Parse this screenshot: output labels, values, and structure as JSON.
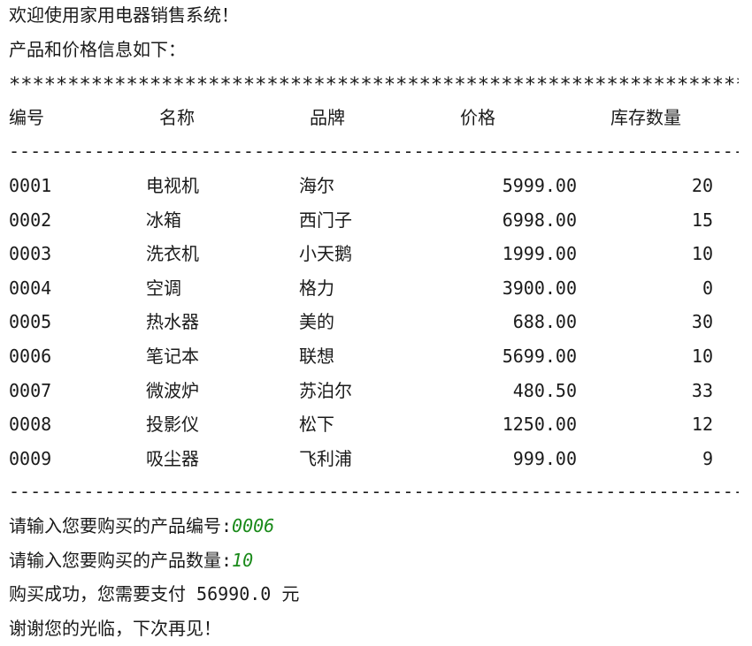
{
  "welcome": "欢迎使用家用电器销售系统！",
  "intro": "产品和价格信息如下：",
  "star_char": "*",
  "dash_char": "-",
  "headers": [
    "编号",
    "名称",
    "品牌",
    "价格",
    "库存数量"
  ],
  "rows": [
    [
      "0001",
      "电视机",
      "海尔",
      "5999.00",
      "20"
    ],
    [
      "0002",
      "冰箱",
      "西门子",
      "6998.00",
      "15"
    ],
    [
      "0003",
      "洗衣机",
      "小天鹅",
      "1999.00",
      "10"
    ],
    [
      "0004",
      "空调",
      "格力",
      "3900.00",
      "0"
    ],
    [
      "0005",
      "热水器",
      "美的",
      "688.00",
      "30"
    ],
    [
      "0006",
      "笔记本",
      "联想",
      "5699.00",
      "10"
    ],
    [
      "0007",
      "微波炉",
      "苏泊尔",
      "480.50",
      "33"
    ],
    [
      "0008",
      "投影仪",
      "松下",
      "1250.00",
      "12"
    ],
    [
      "0009",
      "吸尘器",
      "飞利浦",
      "999.00",
      "9"
    ]
  ],
  "prompt_id": "请输入您要购买的产品编号:",
  "input_id": "0006",
  "prompt_qty": "请输入您要购买的产品数量:",
  "input_qty": "10",
  "result_prefix": "购买成功，您需要支付",
  "result_amount": "56990.0",
  "result_unit": "元",
  "farewell": "谢谢您的光临，下次再见！",
  "colors": {
    "input": "#1a8a1a",
    "text": "#1a1a1a"
  }
}
